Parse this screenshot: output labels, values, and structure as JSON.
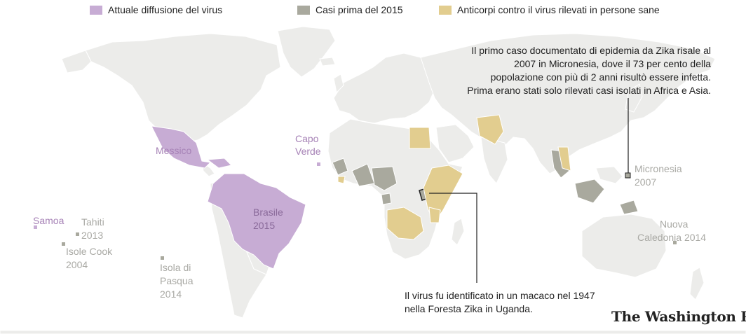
{
  "legend": {
    "current_spread": "Attuale diffusione del virus",
    "before_2015": "Casi prima del 2015",
    "antibodies": "Anticorpi contro il virus rilevati in persone sane"
  },
  "colors": {
    "current_spread": "#c7acd4",
    "before_2015": "#a9a99e",
    "antibodies": "#e2cd8f",
    "land": "#ececea",
    "water": "#ffffff",
    "border": "#ffffff"
  },
  "labels": {
    "mexico": "Messico",
    "cape_verde_1": "Capo",
    "cape_verde_2": "Verde",
    "brazil_1": "Brasile",
    "brazil_2": "2015",
    "samoa": "Samoa",
    "tahiti_1": "Tahiti",
    "tahiti_2": "2013",
    "cook_1": "Isole Cook",
    "cook_2": "2004",
    "easter_1": "Isola di",
    "easter_2": "Pasqua",
    "easter_3": "2014",
    "micronesia_1": "Micronesia",
    "micronesia_2": "2007",
    "nc_1": "Nuova",
    "nc_2": "Caledonia 2014"
  },
  "notes": {
    "micronesia_lines": [
      "Il primo caso documentato di epidemia da Zika risale al",
      "2007 in Micronesia, dove il 73 per cento della",
      "popolazione con più di 2 anni risultò essere infetta.",
      "Prima erano stati solo rilevati casi isolati in Africa e Asia."
    ],
    "uganda_lines": [
      "Il virus fu identificato in un macaco nel 1947",
      "nella Foresta Zika in Uganda."
    ]
  },
  "logo": "The Washington Post"
}
